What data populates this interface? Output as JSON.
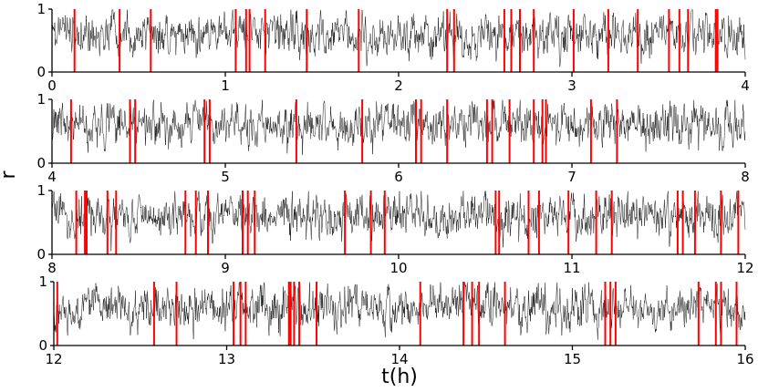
{
  "chart_data": {
    "type": "line",
    "xlabel": "t(h)",
    "ylabel": "r",
    "y_ticks": [
      "0",
      "1"
    ],
    "ylim": [
      0,
      1
    ],
    "colors": {
      "trace": "#000000",
      "events": "#ff0000"
    },
    "panels": [
      {
        "xlim": [
          0,
          4
        ],
        "x_ticks": [
          "0",
          "1",
          "2",
          "3",
          "4"
        ],
        "events_h": [
          0.13,
          0.39,
          0.57,
          1.06,
          1.12,
          1.14,
          1.23,
          1.47,
          1.77,
          2.28,
          2.32,
          2.61,
          2.65,
          2.7,
          2.78,
          3.01,
          3.21,
          3.38,
          3.56,
          3.62,
          3.67,
          3.83,
          3.84
        ]
      },
      {
        "xlim": [
          4,
          8
        ],
        "x_ticks": [
          "4",
          "5",
          "6",
          "7",
          "8"
        ],
        "events_h": [
          4.11,
          4.45,
          4.48,
          4.88,
          4.91,
          5.41,
          5.79,
          6.1,
          6.13,
          6.28,
          6.51,
          6.54,
          6.64,
          6.78,
          6.83,
          6.85,
          7.11,
          7.26
        ]
      },
      {
        "xlim": [
          8,
          12
        ],
        "x_ticks": [
          "8",
          "9",
          "10",
          "11",
          "12"
        ],
        "events_h": [
          8.14,
          8.19,
          8.2,
          8.32,
          8.37,
          8.77,
          8.83,
          8.9,
          9.1,
          9.13,
          9.17,
          9.69,
          9.84,
          9.92,
          10.56,
          10.58,
          10.75,
          10.81,
          10.98,
          11.14,
          11.23,
          11.61,
          11.64,
          11.71,
          11.86,
          11.96
        ]
      },
      {
        "xlim": [
          12,
          16
        ],
        "x_ticks": [
          "12",
          "13",
          "14",
          "15",
          "16"
        ],
        "events_h": [
          12.02,
          12.58,
          12.71,
          13.04,
          13.08,
          13.11,
          13.36,
          13.37,
          13.39,
          13.42,
          13.52,
          14.12,
          14.37,
          14.42,
          14.46,
          14.61,
          15.19,
          15.22,
          15.25,
          15.73,
          15.83,
          15.86,
          15.95
        ]
      }
    ]
  }
}
